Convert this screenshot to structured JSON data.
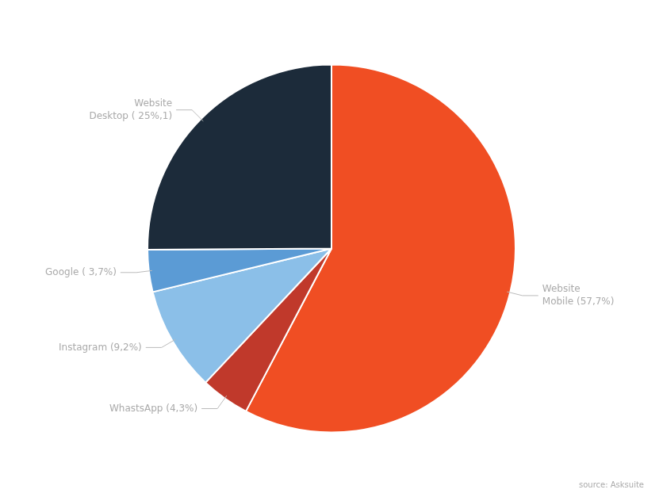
{
  "chart_data": {
    "type": "pie",
    "categories": [
      "Website\nMobile (57,7%)",
      "WhastsApp (4,3%)",
      "Instagram (9,2%)",
      "Google ( 3,7%)",
      "Website\nDesktop ( 25%,1)"
    ],
    "values": [
      57.7,
      4.3,
      9.2,
      3.7,
      25.1
    ],
    "colors": [
      "#F04E23",
      "#C0392B",
      "#8BBFE8",
      "#5B9BD5",
      "#1C2B3A"
    ],
    "annotations": [
      "source: Asksuite"
    ]
  }
}
